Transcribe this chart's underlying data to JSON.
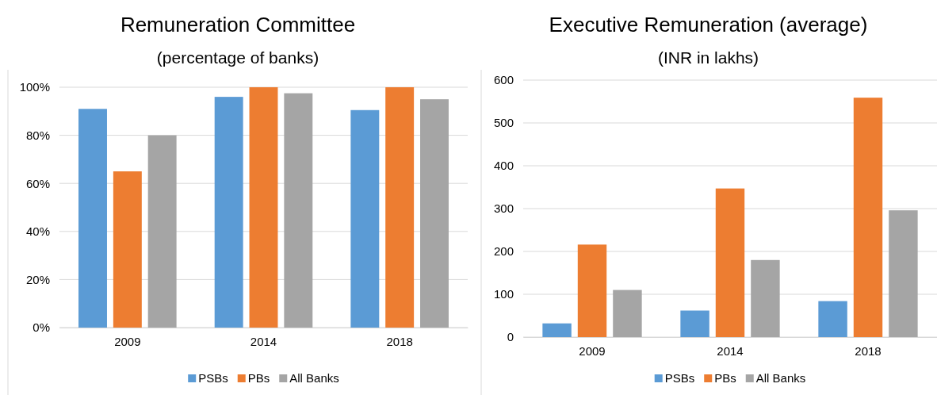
{
  "chart_data": [
    {
      "type": "bar",
      "title": "Remuneration Committee",
      "subtitle": "(percentage of banks)",
      "categories": [
        "2009",
        "2014",
        "2018"
      ],
      "series": [
        {
          "name": "PSBs",
          "color": "#5b9bd5",
          "values": [
            91,
            96,
            90.5
          ]
        },
        {
          "name": "PBs",
          "color": "#ed7d31",
          "values": [
            65,
            100,
            100
          ]
        },
        {
          "name": "All Banks",
          "color": "#a5a5a5",
          "values": [
            80,
            97.5,
            95
          ]
        }
      ],
      "ylim": [
        0,
        100
      ],
      "yticks": [
        {
          "value": 0,
          "label": "0%"
        },
        {
          "value": 20,
          "label": "20%"
        },
        {
          "value": 40,
          "label": "40%"
        },
        {
          "value": 60,
          "label": "60%"
        },
        {
          "value": 80,
          "label": "80%"
        },
        {
          "value": 100,
          "label": "100%"
        }
      ],
      "grid": "y",
      "legend": "bottom"
    },
    {
      "type": "bar",
      "title": "Executive Remuneration (average)",
      "subtitle": "(INR in lakhs)",
      "categories": [
        "2009",
        "2014",
        "2018"
      ],
      "series": [
        {
          "name": "PSBs",
          "color": "#5b9bd5",
          "values": [
            32,
            62,
            84
          ]
        },
        {
          "name": "PBs",
          "color": "#ed7d31",
          "values": [
            216,
            347,
            559
          ]
        },
        {
          "name": "All Banks",
          "color": "#a5a5a5",
          "values": [
            110,
            180,
            296
          ]
        }
      ],
      "ylim": [
        0,
        600
      ],
      "yticks": [
        0,
        100,
        200,
        300,
        400,
        500,
        600
      ],
      "grid": "y",
      "legend": "bottom"
    }
  ]
}
